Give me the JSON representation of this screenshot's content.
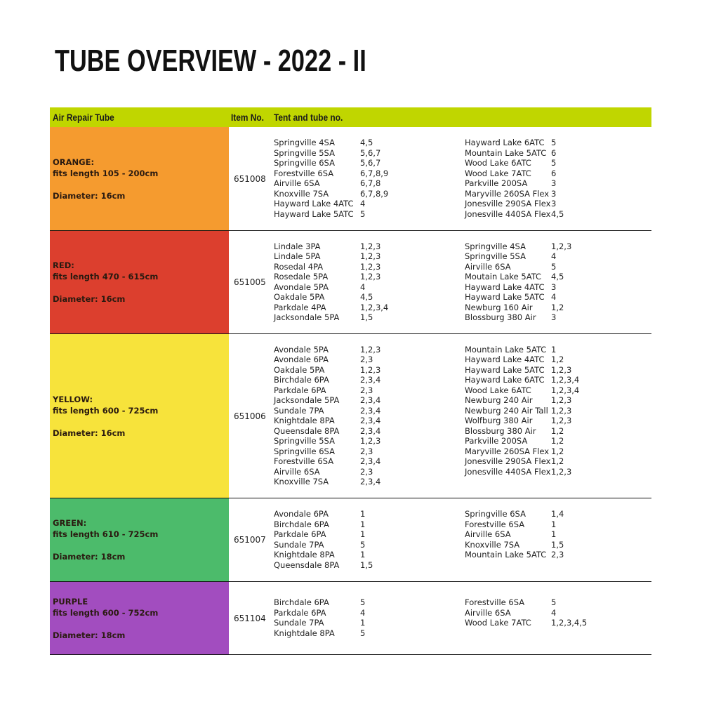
{
  "title": "TUBE OVERVIEW - 2022 - II",
  "header": {
    "col1": "Air Repair Tube",
    "col2": "Item No.",
    "col3": "Tent and tube no.",
    "color": "#c0d600"
  },
  "rows": [
    {
      "color": "#f59b2f",
      "name": "ORANGE:",
      "length": "fits length 105 - 200cm",
      "diameter": "Diameter: 16cm",
      "item": "651008",
      "left": [
        [
          "Springville 4SA",
          "4,5"
        ],
        [
          "Springville 5SA",
          "5,6,7"
        ],
        [
          "Springville 6SA",
          "5,6,7"
        ],
        [
          "Forestville 6SA",
          "6,7,8,9"
        ],
        [
          "Airville 6SA",
          "6,7,8"
        ],
        [
          "Knoxville 7SA",
          "6,7,8,9"
        ],
        [
          "Hayward Lake 4ATC",
          "4"
        ],
        [
          "Hayward Lake 5ATC",
          "5"
        ]
      ],
      "right": [
        [
          "Hayward Lake 6ATC",
          "5"
        ],
        [
          "Mountain Lake 5ATC",
          "6"
        ],
        [
          "Wood Lake 6ATC",
          "5"
        ],
        [
          "Wood Lake 7ATC",
          "6"
        ],
        [
          "Parkville 200SA",
          "3"
        ],
        [
          "Maryville 260SA Flex",
          "3"
        ],
        [
          "Jonesville 290SA Flex",
          "3"
        ],
        [
          "Jonesville 440SA Flex",
          "4,5"
        ]
      ]
    },
    {
      "color": "#dc3f2e",
      "name": "RED:",
      "length": "fits length 470 - 615cm",
      "diameter": "Diameter: 16cm",
      "item": "651005",
      "left": [
        [
          "Lindale 3PA",
          "1,2,3"
        ],
        [
          "Lindale 5PA",
          "1,2,3"
        ],
        [
          "Rosedal 4PA",
          "1,2,3"
        ],
        [
          "Rosedale 5PA",
          "1,2,3"
        ],
        [
          "Avondale 5PA",
          "4"
        ],
        [
          "Oakdale 5PA",
          "4,5"
        ],
        [
          "Parkdale 4PA",
          "1,2,3,4"
        ],
        [
          "Jacksondale 5PA",
          "1,5"
        ]
      ],
      "right": [
        [
          "Springville 4SA",
          "1,2,3"
        ],
        [
          "Springville 5SA",
          "4"
        ],
        [
          "Airville 6SA",
          "5"
        ],
        [
          "Moutain Lake 5ATC",
          "4,5"
        ],
        [
          "Hayward Lake 4ATC",
          "3"
        ],
        [
          "Hayward Lake 5ATC",
          "4"
        ],
        [
          "Newburg 160 Air",
          "1,2"
        ],
        [
          "Blossburg 380 Air",
          "3"
        ]
      ]
    },
    {
      "color": "#f7e33b",
      "name": "YELLOW:",
      "length": "fits length 600 - 725cm",
      "diameter": "Diameter: 16cm",
      "item": "651006",
      "left": [
        [
          "Avondale 5PA",
          "1,2,3"
        ],
        [
          "Avondale 6PA",
          "2,3"
        ],
        [
          "Oakdale 5PA",
          "1,2,3"
        ],
        [
          "Birchdale 6PA",
          "2,3,4"
        ],
        [
          "Parkdale 6PA",
          "2,3"
        ],
        [
          "Jacksondale 5PA",
          "2,3,4"
        ],
        [
          "Sundale 7PA",
          "2,3,4"
        ],
        [
          "Knightdale 8PA",
          "2,3,4"
        ],
        [
          "Queensdale 8PA",
          "2,3,4"
        ],
        [
          "Springville 5SA",
          "1,2,3"
        ],
        [
          "Springville 6SA",
          "2,3"
        ],
        [
          "Forestville 6SA",
          "2,3,4"
        ],
        [
          "Airville 6SA",
          "2,3"
        ],
        [
          "Knoxville 7SA",
          "2,3,4"
        ]
      ],
      "right": [
        [
          "Mountain Lake 5ATC",
          "1"
        ],
        [
          "Hayward Lake 4ATC",
          "1,2"
        ],
        [
          "Hayward Lake 5ATC",
          "1,2,3"
        ],
        [
          "Hayward Lake 6ATC",
          "1,2,3,4"
        ],
        [
          "Wood Lake 6ATC",
          "1,2,3,4"
        ],
        [
          "Newburg 240 Air",
          "1,2,3"
        ],
        [
          "Newburg 240 Air Tall",
          "1,2,3"
        ],
        [
          "Wolfburg 380 Air",
          "1,2,3"
        ],
        [
          "Blossburg 380 Air",
          "1,2"
        ],
        [
          "Parkville 200SA",
          "1,2"
        ],
        [
          "Maryville 260SA Flex",
          "1,2"
        ],
        [
          "Jonesville 290SA Flex",
          "1,2"
        ],
        [
          "Jonesville 440SA Flex",
          "1,2,3"
        ]
      ]
    },
    {
      "color": "#4cbb6b",
      "name": "GREEN:",
      "length": "fits length 610 - 725cm",
      "diameter": "Diameter: 18cm",
      "item": "651007",
      "left": [
        [
          "Avondale 6PA",
          "1"
        ],
        [
          "Birchdale 6PA",
          "1"
        ],
        [
          "Parkdale 6PA",
          "1"
        ],
        [
          "Sundale 7PA",
          "5"
        ],
        [
          "Knightdale 8PA",
          "1"
        ],
        [
          "Queensdale 8PA",
          "1,5"
        ]
      ],
      "right": [
        [
          "Springville 6SA",
          "1,4"
        ],
        [
          "Forestville 6SA",
          "1"
        ],
        [
          "Airville 6SA",
          "1"
        ],
        [
          "Knoxville 7SA",
          "1,5"
        ],
        [
          "Mountain Lake 5ATC",
          "2,3"
        ]
      ]
    },
    {
      "color": "#a24dbf",
      "name": "PURPLE",
      "length": "fits length 600 - 752cm",
      "diameter": "Diameter: 18cm",
      "item": "651104",
      "left": [
        [
          "Birchdale 6PA",
          "5"
        ],
        [
          "Parkdale 6PA",
          "4"
        ],
        [
          "Sundale 7PA",
          "1"
        ],
        [
          "Knightdale 8PA",
          "5"
        ]
      ],
      "right": [
        [
          "Forestville 6SA",
          "5"
        ],
        [
          "Airville 6SA",
          "4"
        ],
        [
          "Wood Lake 7ATC",
          "1,2,3,4,5"
        ]
      ]
    }
  ]
}
